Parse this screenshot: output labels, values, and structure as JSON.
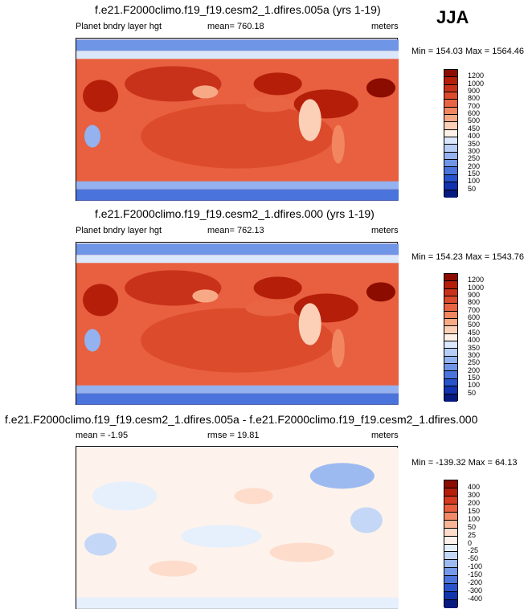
{
  "season": "JJA",
  "panels": [
    {
      "title": "f.e21.F2000climo.f19_f19.cesm2_1.dfires.005a (yrs 1-19)",
      "left_label": "Planet bndry layer hgt",
      "center_label": "mean= 760.18",
      "right_label": "meters",
      "minmax": "Min = 154.03 Max = 1564.46",
      "levels": [
        "1200",
        "1000",
        "900",
        "800",
        "700",
        "600",
        "500",
        "450",
        "400",
        "350",
        "300",
        "250",
        "200",
        "150",
        "100",
        "50"
      ],
      "colors": [
        "#8c0c00",
        "#b51f0a",
        "#c9321a",
        "#db4b2c",
        "#e86443",
        "#f28660",
        "#f7a985",
        "#fbd0b7",
        "#fdf0e6",
        "#dbe7fb",
        "#b7cdf5",
        "#93b2ef",
        "#6f95e6",
        "#4a74db",
        "#2753cd",
        "#1133b0",
        "#061a80"
      ]
    },
    {
      "title": "f.e21.F2000climo.f19_f19.cesm2_1.dfires.000 (yrs 1-19)",
      "left_label": "Planet bndry layer hgt",
      "center_label": "mean= 762.13",
      "right_label": "meters",
      "minmax": "Min = 154.23 Max = 1543.76",
      "levels": [
        "1200",
        "1000",
        "900",
        "800",
        "700",
        "600",
        "500",
        "450",
        "400",
        "350",
        "300",
        "250",
        "200",
        "150",
        "100",
        "50"
      ],
      "colors": [
        "#8c0c00",
        "#b51f0a",
        "#c9321a",
        "#db4b2c",
        "#e86443",
        "#f28660",
        "#f7a985",
        "#fbd0b7",
        "#fdf0e6",
        "#dbe7fb",
        "#b7cdf5",
        "#93b2ef",
        "#6f95e6",
        "#4a74db",
        "#2753cd",
        "#1133b0",
        "#061a80"
      ]
    },
    {
      "title": "f.e21.F2000climo.f19_f19.cesm2_1.dfires.005a - f.e21.F2000climo.f19_f19.cesm2_1.dfires.000",
      "left_label": "mean =  -1.95",
      "center_label": "rmse =  19.81",
      "right_label": "meters",
      "minmax": "Min = -139.32 Max =  64.13",
      "levels": [
        "400",
        "300",
        "200",
        "150",
        "100",
        "50",
        "25",
        "0",
        "-25",
        "-50",
        "-100",
        "-150",
        "-200",
        "-300",
        "-400"
      ],
      "colors": [
        "#8c0c00",
        "#b51f0a",
        "#d63a20",
        "#e8603f",
        "#f28a67",
        "#f9b597",
        "#fddccb",
        "#fdf3ec",
        "#e6effc",
        "#c5d7f6",
        "#9dbaf0",
        "#759aea",
        "#4c74dc",
        "#2953cc",
        "#1234ad",
        "#061a80"
      ]
    }
  ]
}
